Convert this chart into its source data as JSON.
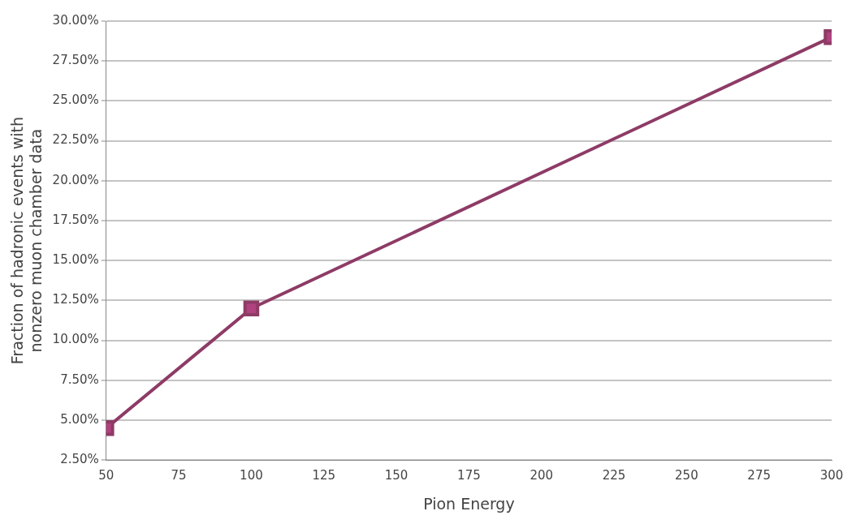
{
  "chart_data": {
    "type": "line",
    "xlabel": "Pion Energy",
    "ylabel": "Fraction of hadronic events with\nnonzero muon chamber data",
    "x": [
      50,
      100,
      300
    ],
    "series": [
      {
        "color": "#8e3b66",
        "values": [
          4.5,
          12.0,
          29.0
        ]
      }
    ],
    "marker": "square",
    "grid": "y",
    "legend": false,
    "xlim": [
      50,
      300
    ],
    "xticks": [
      50,
      75,
      100,
      125,
      150,
      175,
      200,
      225,
      250,
      275,
      300
    ],
    "ylim": [
      2.5,
      30
    ],
    "yticks": [
      {
        "value": 2.5,
        "label": "2.50%"
      },
      {
        "value": 5,
        "label": "5.00%"
      },
      {
        "value": 7.5,
        "label": "7.50%"
      },
      {
        "value": 10,
        "label": "10.00%"
      },
      {
        "value": 12.5,
        "label": "12.50%"
      },
      {
        "value": 15,
        "label": "15.00%"
      },
      {
        "value": 17.5,
        "label": "17.50%"
      },
      {
        "value": 20,
        "label": "20.00%"
      },
      {
        "value": 22.5,
        "label": "22.50%"
      },
      {
        "value": 25,
        "label": "25.00%"
      },
      {
        "value": 27.5,
        "label": "27.50%"
      },
      {
        "value": 30,
        "label": "30.00%"
      }
    ]
  }
}
